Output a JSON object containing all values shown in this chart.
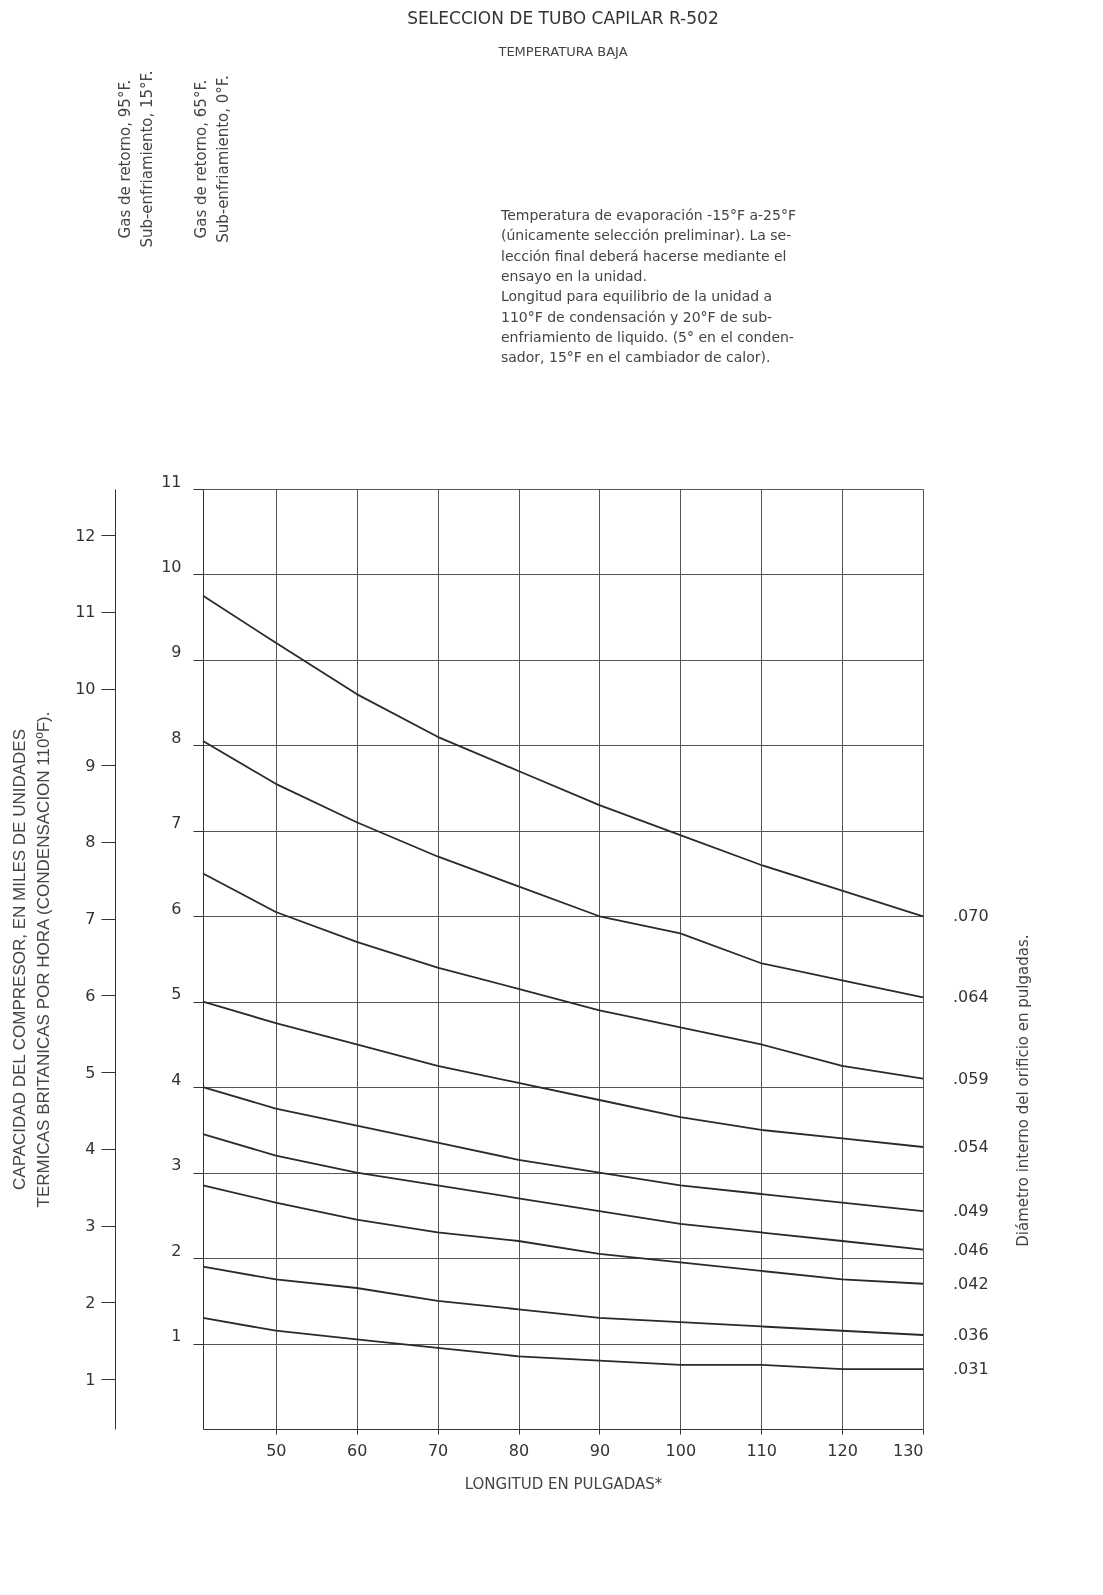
{
  "chart_data": {
    "type": "line",
    "title": "SELECCION DE TUBO CAPILAR R-502",
    "subtitle": "TEMPERATURA BAJA",
    "xlabel": "LONGITUD EN PULGADAS*",
    "y2label": "CAPACIDAD DEL COMPRESOR, EN MILES DE UNIDADES\nTERMICAS BRITANICAS POR HORA (CONDENSACION 110ºF).",
    "annotations": [
      "Gas de retorno, 95°F.\nSub-enfriamiento, 15°F.",
      "Gas de retorno, 65°F.\nSub-enfriamiento, 0°F.",
      "Temperatura de evaporación -15°F a-25°F\n(únicamente selección preliminar). La se-\nlección final deberá hacerse mediante el\nensayo en la unidad.\nLongitud para equilibrio de la unidad a\n110°F de condensación y 20°F de sub-\nenfriamiento de liquido. (5° en el conden-\nsador, 15°F en el cambiador de calor).",
      "Diámetro interno del orificio en pulgadas."
    ],
    "x": [
      41,
      50,
      60,
      70,
      80,
      90,
      100,
      110,
      120,
      130
    ],
    "xlim": [
      41,
      130
    ],
    "xticks": [
      50,
      60,
      70,
      80,
      90,
      100,
      110,
      120,
      130
    ],
    "ylim": [
      0,
      11
    ],
    "yticks": [
      1,
      2,
      3,
      4,
      5,
      6,
      7,
      8,
      9,
      10,
      11
    ],
    "y2lim": [
      0.35,
      12.6
    ],
    "y2ticks": [
      1,
      2,
      3,
      4,
      5,
      6,
      7,
      8,
      9,
      10,
      11,
      12
    ],
    "grid": true,
    "series": [
      {
        "name": ".070",
        "color": "#2a2a2a",
        "values": [
          9.75,
          9.2,
          8.6,
          8.1,
          7.7,
          7.3,
          6.95,
          6.6,
          6.3,
          6.0
        ]
      },
      {
        "name": ".064",
        "color": "#2a2a2a",
        "values": [
          8.05,
          7.55,
          7.1,
          6.7,
          6.35,
          6.0,
          5.8,
          5.45,
          5.25,
          5.05
        ]
      },
      {
        "name": ".059",
        "color": "#2a2a2a",
        "values": [
          6.5,
          6.05,
          5.7,
          5.4,
          5.15,
          4.9,
          4.7,
          4.5,
          4.25,
          4.1
        ]
      },
      {
        "name": ".054",
        "color": "#2a2a2a",
        "values": [
          5.0,
          4.75,
          4.5,
          4.25,
          4.05,
          3.85,
          3.65,
          3.5,
          3.4,
          3.3
        ]
      },
      {
        "name": ".049",
        "color": "#2a2a2a",
        "values": [
          4.0,
          3.75,
          3.55,
          3.35,
          3.15,
          3.0,
          2.85,
          2.75,
          2.65,
          2.55
        ]
      },
      {
        "name": ".046",
        "color": "#2a2a2a",
        "values": [
          3.45,
          3.2,
          3.0,
          2.85,
          2.7,
          2.55,
          2.4,
          2.3,
          2.2,
          2.1
        ]
      },
      {
        "name": ".042",
        "color": "#2a2a2a",
        "values": [
          2.85,
          2.65,
          2.45,
          2.3,
          2.2,
          2.05,
          1.95,
          1.85,
          1.75,
          1.7
        ]
      },
      {
        "name": ".036",
        "color": "#2a2a2a",
        "values": [
          1.9,
          1.75,
          1.65,
          1.5,
          1.4,
          1.3,
          1.25,
          1.2,
          1.15,
          1.1
        ]
      },
      {
        "name": ".031",
        "color": "#2a2a2a",
        "values": [
          1.3,
          1.15,
          1.05,
          0.95,
          0.85,
          0.8,
          0.75,
          0.75,
          0.7,
          0.7
        ]
      }
    ]
  }
}
